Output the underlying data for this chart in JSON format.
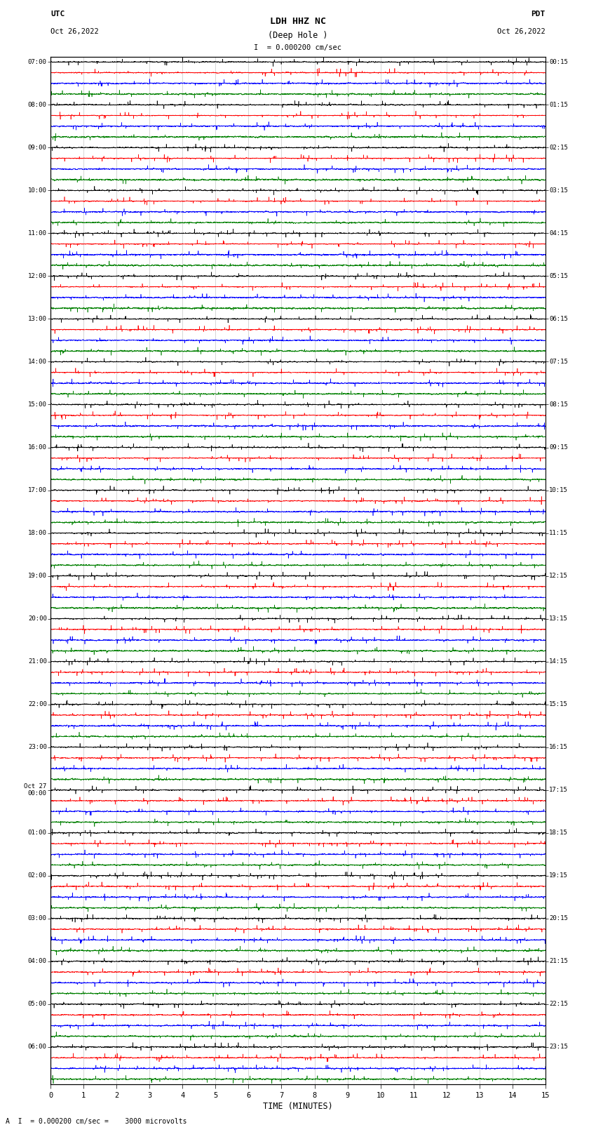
{
  "title_line1": "LDH HHZ NC",
  "title_line2": "(Deep Hole )",
  "scale_text": "I  = 0.000200 cm/sec",
  "bottom_text": "A  I  = 0.000200 cm/sec =    3000 microvolts",
  "left_header": "UTC",
  "left_date": "Oct 26,2022",
  "right_header": "PDT",
  "right_date": "Oct 26,2022",
  "xlabel": "TIME (MINUTES)",
  "left_labels": [
    "07:00",
    "08:00",
    "09:00",
    "10:00",
    "11:00",
    "12:00",
    "13:00",
    "14:00",
    "15:00",
    "16:00",
    "17:00",
    "18:00",
    "19:00",
    "20:00",
    "21:00",
    "22:00",
    "23:00",
    "Oct 27\n00:00",
    "01:00",
    "02:00",
    "03:00",
    "04:00",
    "05:00",
    "06:00"
  ],
  "right_labels": [
    "00:15",
    "01:15",
    "02:15",
    "03:15",
    "04:15",
    "05:15",
    "06:15",
    "07:15",
    "08:15",
    "09:15",
    "10:15",
    "11:15",
    "12:15",
    "13:15",
    "14:15",
    "15:15",
    "16:15",
    "17:15",
    "18:15",
    "19:15",
    "20:15",
    "21:15",
    "22:15",
    "23:15"
  ],
  "colors": [
    "black",
    "red",
    "blue",
    "green"
  ],
  "n_rows": 24,
  "traces_per_row": 4,
  "grid_color": "#888888",
  "fig_width": 8.5,
  "fig_height": 16.13,
  "dpi": 100,
  "noise_amplitudes": [
    0.3,
    0.38,
    0.28,
    0.22
  ],
  "spike_probs": [
    0.008,
    0.01,
    0.008,
    0.006
  ],
  "spike_amps": [
    1.8,
    2.2,
    1.6,
    1.4
  ],
  "n_pts": 4500
}
